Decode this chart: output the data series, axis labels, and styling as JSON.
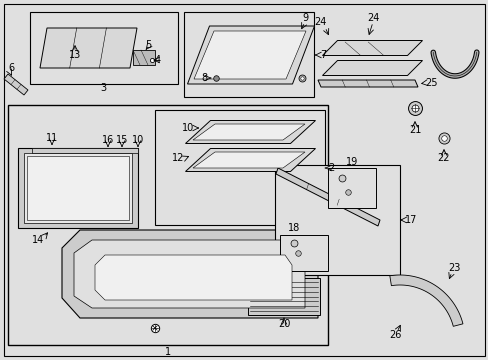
{
  "bg_color": "#e0e0e0",
  "white": "#ffffff",
  "black": "#000000",
  "fig_w": 4.89,
  "fig_h": 3.6,
  "dpi": 100
}
